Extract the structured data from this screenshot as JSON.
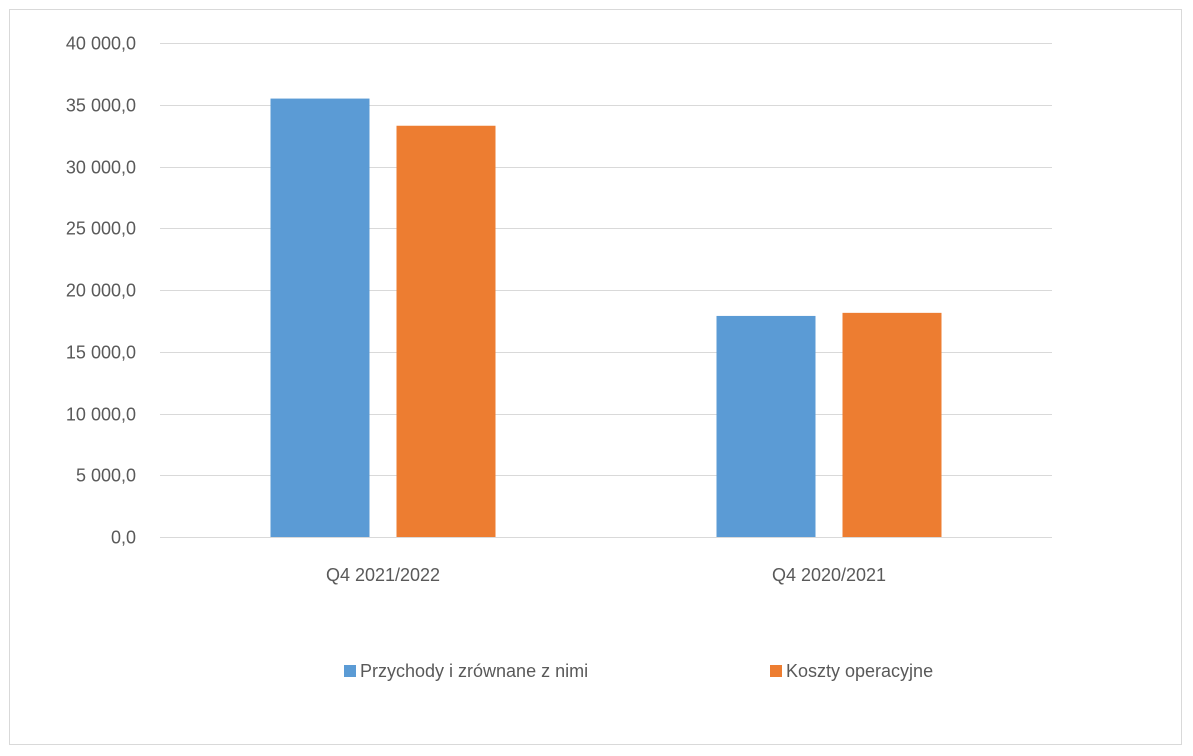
{
  "chart_data": {
    "type": "bar",
    "categories": [
      "Q4 2021/2022",
      "Q4 2020/2021"
    ],
    "series": [
      {
        "name": "Przychody i zrównane z nimi",
        "values": [
          35500,
          17900
        ],
        "color": "#5b9bd5"
      },
      {
        "name": "Koszty operacyjne",
        "values": [
          33300,
          18150
        ],
        "color": "#ed7d31"
      }
    ],
    "ylim": [
      0,
      40000
    ],
    "y_ticks": [
      0,
      5000,
      10000,
      15000,
      20000,
      25000,
      30000,
      35000,
      40000
    ],
    "y_tick_labels": [
      "0,0",
      "5 000,0",
      "10 000,0",
      "15 000,0",
      "20 000,0",
      "25 000,0",
      "30 000,0",
      "35 000,0",
      "40 000,0"
    ],
    "grid": true,
    "legend_position": "bottom",
    "title": "",
    "xlabel": "",
    "ylabel": ""
  },
  "colors": {
    "grid": "#d9d9d9",
    "text": "#595959",
    "border": "#d9d9d9"
  }
}
